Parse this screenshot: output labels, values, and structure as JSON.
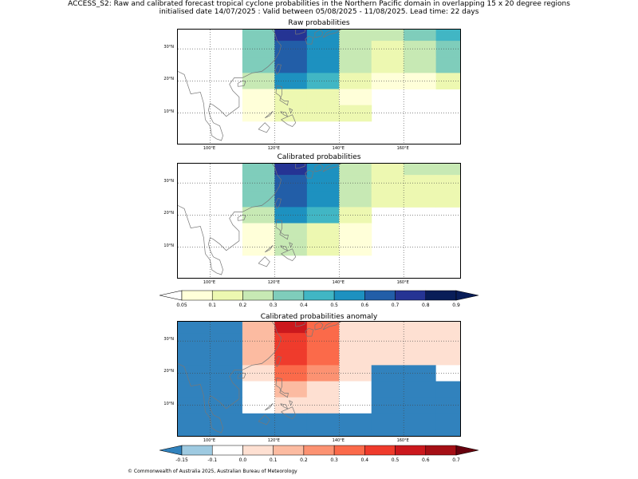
{
  "header": {
    "line1": "ACCESS_S2: Raw and calibrated forecast tropical cyclone probabilities in the Northern Pacific domain in overlapping 15 x 20 degree regions",
    "line2": "initialised date 14/07/2025 :  Valid between 05/08/2025 - 11/08/2025. Lead time: 22 days"
  },
  "lat_labels": [
    "30°N",
    "20°N",
    "10°N"
  ],
  "lon_labels": [
    "100°E",
    "120°E",
    "140°E",
    "160°E"
  ],
  "footer": "© Commonwealth of Australia 2025, Australian Bureau of Meteorology",
  "colors": {
    "prob": [
      "#ffffd9",
      "#edf8b1",
      "#c7e9b4",
      "#7fcdbb",
      "#41b6c4",
      "#1d91c0",
      "#225ea8",
      "#253494",
      "#081d58"
    ],
    "anom": [
      "#3182bd",
      "#9ecae1",
      "#ffffff",
      "#fee0d2",
      "#fcbba1",
      "#fc9272",
      "#fb6a4a",
      "#ef3b2c",
      "#cb181d",
      "#a50f15"
    ],
    "coast": "#777777"
  },
  "chart_data": [
    {
      "type": "heatmap",
      "title": "Raw probabilities",
      "x_cells": [
        110,
        120,
        130,
        140,
        150,
        160,
        170
      ],
      "y_cells": [
        37.5,
        32.5,
        27.5,
        22.5,
        17.5,
        12.5,
        7.5
      ],
      "values": [
        [
          0.35,
          0.75,
          0.55,
          0.25,
          0.25,
          0.35,
          0.45
        ],
        [
          0.35,
          0.65,
          0.55,
          0.25,
          0.15,
          0.25,
          0.35
        ],
        [
          0.35,
          0.65,
          0.55,
          0.25,
          0.15,
          0.25,
          0.35
        ],
        [
          0.25,
          0.55,
          0.45,
          0.15,
          0.05,
          0.05,
          0.15
        ],
        [
          0.05,
          0.15,
          0.15,
          0.05,
          null,
          null,
          null
        ],
        [
          0.05,
          0.15,
          0.15,
          0.15,
          null,
          null,
          null
        ],
        [
          null,
          null,
          null,
          null,
          null,
          null,
          null
        ]
      ],
      "xlim": [
        90,
        178
      ],
      "ylim": [
        0,
        36
      ]
    },
    {
      "type": "heatmap",
      "title": "Calibrated probabilities",
      "x_cells": [
        110,
        120,
        130,
        140,
        150,
        160,
        170
      ],
      "y_cells": [
        37.5,
        32.5,
        27.5,
        22.5,
        17.5,
        12.5,
        7.5
      ],
      "values": [
        [
          0.35,
          0.75,
          0.55,
          0.25,
          0.15,
          0.25,
          0.25
        ],
        [
          0.35,
          0.65,
          0.55,
          0.25,
          0.15,
          0.15,
          0.15
        ],
        [
          0.35,
          0.65,
          0.55,
          0.25,
          0.15,
          0.15,
          0.15
        ],
        [
          0.25,
          0.55,
          0.45,
          0.15,
          null,
          null,
          null
        ],
        [
          0.05,
          0.25,
          0.15,
          0.05,
          null,
          null,
          null
        ],
        [
          0.05,
          0.25,
          0.15,
          0.05,
          null,
          null,
          null
        ],
        [
          null,
          null,
          null,
          null,
          null,
          null,
          null
        ]
      ],
      "xlim": [
        90,
        178
      ],
      "ylim": [
        0,
        36
      ]
    },
    {
      "type": "heatmap",
      "title": "Calibrated probabilities anomaly",
      "x_cells": [
        90,
        100,
        110,
        120,
        130,
        140,
        150,
        160,
        170
      ],
      "y_cells": [
        37.5,
        32.5,
        27.5,
        22.5,
        17.5,
        12.5,
        7.5,
        2.5
      ],
      "values": [
        [
          -0.2,
          -0.2,
          0.15,
          0.55,
          0.35,
          0.05,
          0.0,
          0.05,
          0.05
        ],
        [
          -0.2,
          -0.2,
          0.15,
          0.45,
          0.35,
          0.05,
          0.0,
          0.0,
          0.0
        ],
        [
          -0.2,
          -0.2,
          0.15,
          0.45,
          0.35,
          0.05,
          0.0,
          0.0,
          0.0
        ],
        [
          -0.2,
          -0.2,
          0.05,
          0.35,
          0.25,
          0.0,
          -0.2,
          -0.2,
          -0.1
        ],
        [
          -0.2,
          -0.2,
          -0.1,
          0.15,
          0.0,
          -0.1,
          -0.2,
          -0.2,
          -0.2
        ],
        [
          -0.2,
          -0.2,
          -0.1,
          0.05,
          0.0,
          -0.1,
          -0.2,
          -0.2,
          -0.2
        ],
        [
          -0.2,
          -0.2,
          -0.2,
          -0.2,
          -0.2,
          -0.2,
          -0.2,
          -0.2,
          -0.2
        ],
        [
          -0.2,
          -0.2,
          -0.2,
          -0.2,
          -0.2,
          -0.2,
          -0.2,
          -0.2,
          -0.2
        ]
      ],
      "xlim": [
        90,
        178
      ],
      "ylim": [
        0,
        36
      ]
    }
  ],
  "colorbars": [
    {
      "ticks": [
        "0.05",
        "0.1",
        "0.2",
        "0.3",
        "0.4",
        "0.5",
        "0.6",
        "0.7",
        "0.8",
        "0.9"
      ]
    },
    {
      "ticks": [
        "-0.15",
        "-0.1",
        "0.0",
        "0.1",
        "0.2",
        "0.3",
        "0.4",
        "0.5",
        "0.6",
        "0.7"
      ]
    }
  ]
}
